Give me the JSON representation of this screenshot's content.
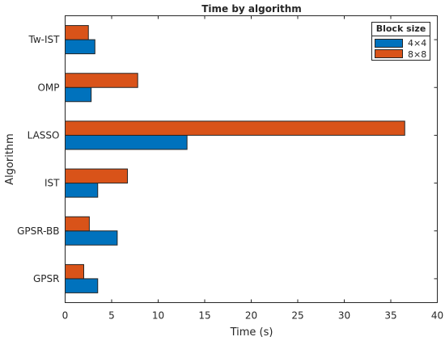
{
  "chart_data": {
    "type": "bar",
    "orientation": "horizontal",
    "title": "Time by algorithm",
    "xlabel": "Time (s)",
    "ylabel": "Algorithm",
    "xlim": [
      0,
      40
    ],
    "xticks": [
      "0",
      "5",
      "10",
      "15",
      "20",
      "25",
      "30",
      "35",
      "40"
    ],
    "categories": [
      "GPSR",
      "GPSR-BB",
      "IST",
      "LASSO",
      "OMP",
      "Tw-IST"
    ],
    "series": [
      {
        "name": "4×4",
        "color": "#0072BD",
        "values": [
          3.5,
          5.6,
          3.5,
          13.1,
          2.8,
          3.2
        ]
      },
      {
        "name": "8×8",
        "color": "#D95319",
        "values": [
          2.0,
          2.6,
          6.7,
          36.5,
          7.8,
          2.5
        ]
      }
    ],
    "legend": {
      "title": "Block size",
      "position": "top-right"
    },
    "grid": false
  }
}
